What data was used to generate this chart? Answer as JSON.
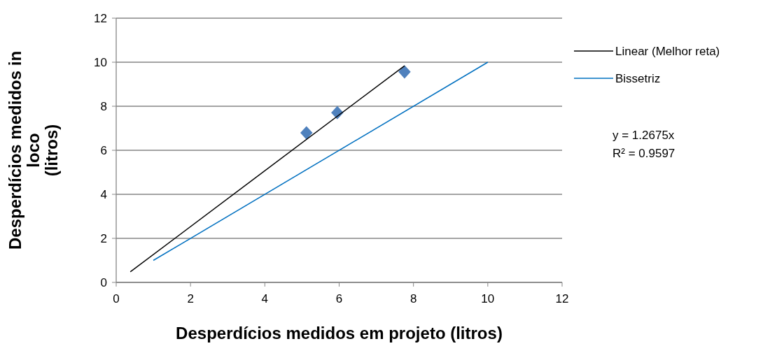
{
  "chart_data": {
    "type": "scatter",
    "xlabel": "Desperdícios medidos em projeto (litros)",
    "ylabel": "Desperdícios medidos in loco (litros)",
    "xlim": [
      0,
      12
    ],
    "ylim": [
      0,
      12
    ],
    "xticks": [
      0,
      2,
      4,
      6,
      8,
      10,
      12
    ],
    "yticks": [
      0,
      2,
      4,
      6,
      8,
      10,
      12
    ],
    "grid": "y",
    "legend": "right",
    "annotations": [
      "y = 1.2675x",
      "R² = 0.9597"
    ],
    "series": [
      {
        "color": "#4f81bd",
        "marker": "diamond",
        "x": [
          5.12,
          5.95,
          7.76
        ],
        "values": [
          6.79,
          7.71,
          9.56
        ]
      },
      {
        "type": "line",
        "name": "Linear (Melhor reta)",
        "color": "#000000",
        "marker": "none",
        "x": [
          0.38,
          7.76
        ],
        "values": [
          0.48,
          9.84
        ]
      },
      {
        "type": "line",
        "name": "Bissetriz",
        "color": "#0070c0",
        "marker": "none",
        "x": [
          1,
          10
        ],
        "values": [
          1,
          10
        ]
      }
    ]
  }
}
